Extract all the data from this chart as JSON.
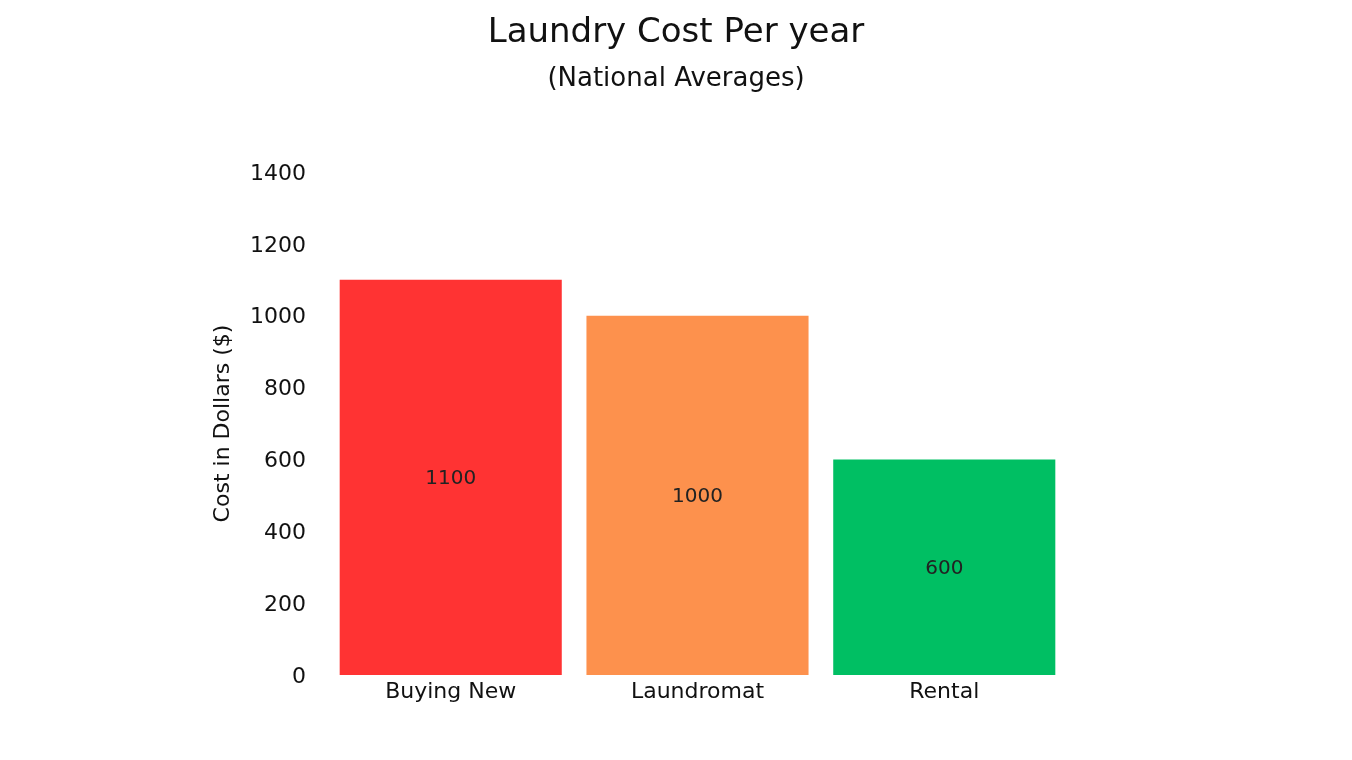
{
  "chart_data": {
    "type": "bar",
    "title": "Laundry Cost Per year",
    "subtitle": "(National Averages)",
    "ylabel": "Cost in Dollars ($)",
    "categories": [
      "Buying New",
      "Laundromat",
      "Rental"
    ],
    "values": [
      1100,
      1000,
      600
    ],
    "colors": [
      "#ff3333",
      "#fd914d",
      "#00bf63"
    ],
    "ylim": [
      0,
      1400
    ],
    "yticks": [
      0,
      200,
      400,
      600,
      800,
      1000,
      1200,
      1400
    ],
    "data_labels": true
  }
}
